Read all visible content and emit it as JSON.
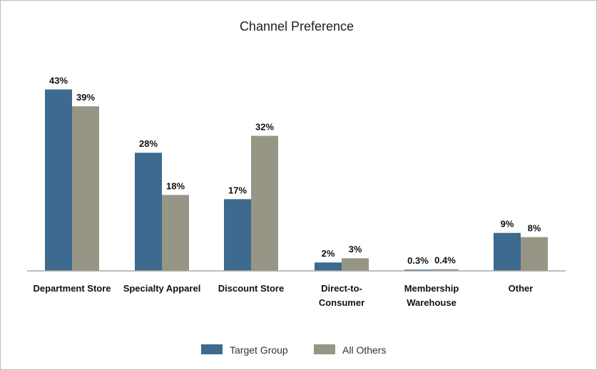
{
  "chart_data": {
    "type": "bar",
    "title": "Channel Preference",
    "xlabel": "",
    "ylabel": "",
    "ylim": [
      0,
      45
    ],
    "grid": false,
    "legend_position": "bottom",
    "categories": [
      [
        "Department Store"
      ],
      [
        "Specialty Apparel"
      ],
      [
        "Discount Store"
      ],
      [
        "Direct-to-",
        "Consumer"
      ],
      [
        "Membership",
        "Warehouse"
      ],
      [
        "Other"
      ]
    ],
    "series": [
      {
        "name": "Target Group",
        "color": "#3d6a8e",
        "values": [
          43,
          28,
          17,
          2,
          0.3,
          9
        ],
        "labels": [
          "43%",
          "28%",
          "17%",
          "2%",
          "0.3%",
          "9%"
        ]
      },
      {
        "name": "All Others",
        "color": "#979585",
        "values": [
          39,
          18,
          32,
          3,
          0.4,
          8
        ],
        "labels": [
          "39%",
          "18%",
          "32%",
          "3%",
          "0.4%",
          "8%"
        ]
      }
    ]
  }
}
